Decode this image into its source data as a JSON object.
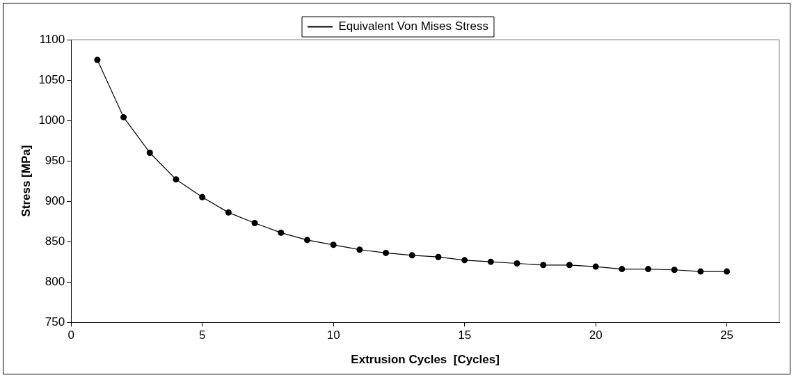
{
  "chart_data": {
    "type": "line",
    "xlabel": "Extrusion Cycles  [Cycles]",
    "ylabel": "Stress [MPa]",
    "x": [
      1,
      2,
      3,
      4,
      5,
      6,
      7,
      8,
      9,
      10,
      11,
      12,
      13,
      14,
      15,
      16,
      17,
      18,
      19,
      20,
      21,
      22,
      23,
      24,
      25
    ],
    "series": [
      {
        "name": "Equivalent Von Mises Stress",
        "color": "#000000",
        "values": [
          1075,
          1004,
          960,
          927,
          905,
          886,
          873,
          861,
          852,
          846,
          840,
          836,
          833,
          831,
          827,
          825,
          823,
          821,
          821,
          819,
          816,
          816,
          815,
          813,
          813
        ]
      }
    ],
    "xlim": [
      0,
      27
    ],
    "xticks": [
      0,
      5,
      10,
      15,
      20,
      25
    ],
    "ylim": [
      750,
      1100
    ],
    "yticks": [
      750,
      800,
      850,
      900,
      950,
      1000,
      1050,
      1100
    ],
    "grid": false,
    "legend": "top",
    "marker": "circle",
    "line_style": "solid"
  }
}
